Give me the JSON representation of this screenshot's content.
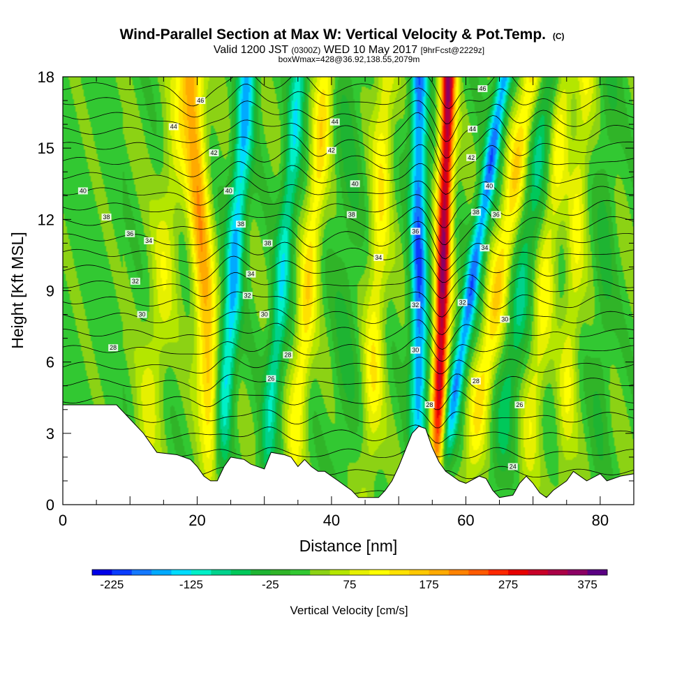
{
  "chart_data": {
    "type": "heatmap",
    "title_main": "Wind-Parallel Section at Max W: Vertical Velocity & Pot.Temp.",
    "title_tag": "(C)",
    "subtitle_valid": "Valid 1200 JST",
    "subtitle_z": "(0300Z)",
    "subtitle_date": "WED 10 May 2017",
    "subtitle_fcst": "[9hrFcst@2229z]",
    "subtitle2": "boxWmax=428@36.92,138.55,2079m",
    "xlabel": "Distance [nm]",
    "ylabel": "Height [Kft MSL]",
    "xlim": [
      0,
      85
    ],
    "ylim": [
      0,
      18
    ],
    "x_ticks": [
      0,
      20,
      40,
      60,
      80
    ],
    "y_ticks": [
      0,
      3,
      6,
      9,
      12,
      15,
      18
    ],
    "colorbar_label": "Vertical Velocity [cm/s]",
    "colorbar_ticks": [
      "-225",
      "-125",
      "-25",
      "75",
      "175",
      "275",
      "375"
    ],
    "colorbar_levels": [
      -250,
      -225,
      -200,
      -175,
      -150,
      -125,
      -100,
      -75,
      -50,
      -25,
      0,
      25,
      50,
      75,
      100,
      125,
      150,
      175,
      200,
      225,
      250,
      275,
      300,
      325,
      350,
      375,
      400
    ],
    "colors": [
      "#0000e8",
      "#0a3cff",
      "#1478ff",
      "#00aaff",
      "#00dcff",
      "#00f0c8",
      "#00d28c",
      "#00c85a",
      "#1eb432",
      "#30b428",
      "#32c832",
      "#8cd214",
      "#b4e600",
      "#e6f000",
      "#ffff00",
      "#ffe100",
      "#ffc800",
      "#ffaa00",
      "#ff8200",
      "#ff5a00",
      "#ff2800",
      "#e60000",
      "#c80028",
      "#aa0046",
      "#8c0064",
      "#5a0082"
    ],
    "terrain_profile": [
      [
        0,
        4.2
      ],
      [
        8,
        4.2
      ],
      [
        9,
        3.9
      ],
      [
        10,
        3.6
      ],
      [
        11,
        3.3
      ],
      [
        12,
        3.0
      ],
      [
        13,
        2.6
      ],
      [
        14,
        2.2
      ],
      [
        17,
        2.1
      ],
      [
        19,
        1.9
      ],
      [
        20,
        1.6
      ],
      [
        21,
        1.2
      ],
      [
        22,
        1.0
      ],
      [
        23,
        1.0
      ],
      [
        24,
        1.6
      ],
      [
        25,
        2.0
      ],
      [
        27,
        1.9
      ],
      [
        28,
        1.7
      ],
      [
        30,
        1.5
      ],
      [
        31,
        2.2
      ],
      [
        33,
        2.1
      ],
      [
        34,
        2.0
      ],
      [
        35,
        1.6
      ],
      [
        36,
        1.9
      ],
      [
        37,
        1.6
      ],
      [
        38,
        1.4
      ],
      [
        39,
        1.4
      ],
      [
        40,
        1.2
      ],
      [
        41,
        1.0
      ],
      [
        42,
        0.8
      ],
      [
        43,
        0.6
      ],
      [
        44,
        0.3
      ],
      [
        47,
        0.3
      ],
      [
        48,
        0.6
      ],
      [
        49,
        1.0
      ],
      [
        50,
        1.6
      ],
      [
        51,
        2.3
      ],
      [
        52,
        3.0
      ],
      [
        53,
        3.3
      ],
      [
        54,
        3.2
      ],
      [
        55,
        2.4
      ],
      [
        56,
        1.8
      ],
      [
        57,
        1.4
      ],
      [
        58,
        1.2
      ],
      [
        59,
        1.0
      ],
      [
        60,
        0.9
      ],
      [
        62,
        1.2
      ],
      [
        63,
        1.1
      ],
      [
        64,
        0.6
      ],
      [
        65,
        0.3
      ],
      [
        67,
        0.4
      ],
      [
        68,
        0.9
      ],
      [
        69,
        1.2
      ],
      [
        70,
        0.9
      ],
      [
        71,
        0.5
      ],
      [
        72,
        0.3
      ],
      [
        73,
        0.6
      ],
      [
        75,
        1.0
      ],
      [
        76,
        1.4
      ],
      [
        78,
        1.0
      ],
      [
        80,
        1.3
      ],
      [
        81,
        1.0
      ],
      [
        83,
        1.2
      ],
      [
        85,
        1.3
      ]
    ],
    "w_features": [
      {
        "x0": 13,
        "dxdz": 0.35,
        "amp": 60,
        "width": 2.0
      },
      {
        "x0": 22,
        "dxdz": -0.2,
        "amp": 160,
        "width": 1.6
      },
      {
        "x0": 24,
        "dxdz": 0.25,
        "amp": -170,
        "width": 1.4
      },
      {
        "x0": 31,
        "dxdz": 0.3,
        "amp": -130,
        "width": 1.3
      },
      {
        "x0": 35,
        "dxdz": 0.3,
        "amp": 110,
        "width": 1.4
      },
      {
        "x0": 42,
        "dxdz": 0.05,
        "amp": -40,
        "width": 2.0
      },
      {
        "x0": 46,
        "dxdz": 0.15,
        "amp": 90,
        "width": 1.5
      },
      {
        "x0": 53,
        "dxdz": 0.0,
        "amp": -210,
        "width": 1.3
      },
      {
        "x0": 56,
        "dxdz": 0.1,
        "amp": 320,
        "width": 1.1
      },
      {
        "x0": 58,
        "dxdz": 0.55,
        "amp": -200,
        "width": 1.2
      },
      {
        "x0": 62,
        "dxdz": 0.55,
        "amp": 120,
        "width": 1.6
      },
      {
        "x0": 66,
        "dxdz": 0.45,
        "amp": -90,
        "width": 1.6
      },
      {
        "x0": 70,
        "dxdz": 0.35,
        "amp": 80,
        "width": 1.5
      },
      {
        "x0": 75,
        "dxdz": 0.2,
        "amp": 70,
        "width": 1.4
      },
      {
        "x0": 80,
        "dxdz": 0.1,
        "amp": -40,
        "width": 1.5
      }
    ],
    "theta_levels": [
      24,
      25,
      26,
      27,
      28,
      29,
      30,
      31,
      32,
      33,
      34,
      35,
      36,
      37,
      38,
      39,
      40,
      41,
      42,
      43,
      44,
      45,
      46,
      47,
      48,
      49
    ],
    "contour_labels": [
      {
        "text": "46",
        "x": 20.5,
        "y": 17.0
      },
      {
        "text": "44",
        "x": 16.5,
        "y": 15.9
      },
      {
        "text": "42",
        "x": 22.5,
        "y": 14.8
      },
      {
        "text": "40",
        "x": 3.0,
        "y": 13.2
      },
      {
        "text": "38",
        "x": 6.5,
        "y": 12.1
      },
      {
        "text": "36",
        "x": 10.0,
        "y": 11.4
      },
      {
        "text": "34",
        "x": 12.8,
        "y": 11.1
      },
      {
        "text": "32",
        "x": 10.8,
        "y": 9.4
      },
      {
        "text": "30",
        "x": 11.8,
        "y": 8.0
      },
      {
        "text": "28",
        "x": 7.5,
        "y": 6.6
      },
      {
        "text": "40",
        "x": 24.7,
        "y": 13.2
      },
      {
        "text": "38",
        "x": 26.5,
        "y": 11.8
      },
      {
        "text": "38",
        "x": 30.5,
        "y": 11.0
      },
      {
        "text": "34",
        "x": 28.0,
        "y": 9.7
      },
      {
        "text": "32",
        "x": 27.5,
        "y": 8.8
      },
      {
        "text": "30",
        "x": 30.0,
        "y": 8.0
      },
      {
        "text": "28",
        "x": 33.5,
        "y": 6.3
      },
      {
        "text": "26",
        "x": 31.0,
        "y": 5.3
      },
      {
        "text": "44",
        "x": 40.5,
        "y": 16.1
      },
      {
        "text": "42",
        "x": 40.0,
        "y": 14.9
      },
      {
        "text": "40",
        "x": 43.5,
        "y": 13.5
      },
      {
        "text": "38",
        "x": 43.0,
        "y": 12.2
      },
      {
        "text": "34",
        "x": 47.0,
        "y": 10.4
      },
      {
        "text": "36",
        "x": 52.5,
        "y": 11.5
      },
      {
        "text": "32",
        "x": 52.5,
        "y": 8.4
      },
      {
        "text": "30",
        "x": 52.5,
        "y": 6.5
      },
      {
        "text": "28",
        "x": 54.6,
        "y": 4.2
      },
      {
        "text": "46",
        "x": 62.5,
        "y": 17.5
      },
      {
        "text": "44",
        "x": 61.0,
        "y": 15.8
      },
      {
        "text": "42",
        "x": 60.8,
        "y": 14.6
      },
      {
        "text": "40",
        "x": 63.5,
        "y": 13.4
      },
      {
        "text": "38",
        "x": 61.5,
        "y": 12.3
      },
      {
        "text": "36",
        "x": 64.5,
        "y": 12.2
      },
      {
        "text": "34",
        "x": 62.8,
        "y": 10.8
      },
      {
        "text": "32",
        "x": 59.5,
        "y": 8.5
      },
      {
        "text": "30",
        "x": 65.8,
        "y": 7.8
      },
      {
        "text": "28",
        "x": 61.5,
        "y": 5.2
      },
      {
        "text": "26",
        "x": 68.0,
        "y": 4.2
      },
      {
        "text": "24",
        "x": 67.0,
        "y": 1.6
      }
    ]
  }
}
